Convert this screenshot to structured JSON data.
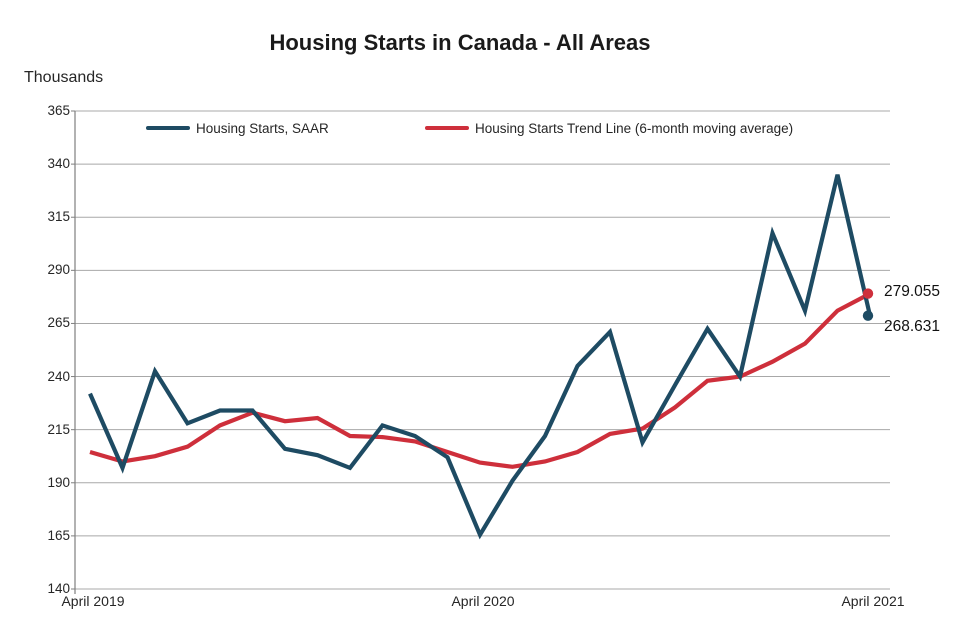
{
  "title": "Housing Starts in Canada - All Areas",
  "y_axis_unit_label": "Thousands",
  "legend": [
    {
      "label": "Housing Starts, SAAR",
      "color": "#1E4B63"
    },
    {
      "label": "Housing Starts Trend Line (6-month moving average)",
      "color": "#CE2F3B"
    }
  ],
  "end_labels": {
    "trend": "279.055",
    "saar": "268.631"
  },
  "chart_data": {
    "type": "line",
    "x_months": [
      "Apr 2019",
      "May 2019",
      "Jun 2019",
      "Jul 2019",
      "Aug 2019",
      "Sep 2019",
      "Oct 2019",
      "Nov 2019",
      "Dec 2019",
      "Jan 2020",
      "Feb 2020",
      "Mar 2020",
      "Apr 2020",
      "May 2020",
      "Jun 2020",
      "Jul 2020",
      "Aug 2020",
      "Sep 2020",
      "Oct 2020",
      "Nov 2020",
      "Dec 2020",
      "Jan 2021",
      "Feb 2021",
      "Mar 2021",
      "Apr 2021"
    ],
    "x_tick_labels": [
      "April 2019",
      "April 2020",
      "April 2021"
    ],
    "x_tick_indices": [
      0,
      12,
      24
    ],
    "y_ticks": [
      140,
      165,
      190,
      215,
      240,
      265,
      290,
      315,
      340,
      365
    ],
    "ylim": [
      140,
      365
    ],
    "grid": "horizontal",
    "legend_position": "top-inside",
    "series": [
      {
        "name": "Housing Starts Trend Line (6-month moving average)",
        "color": "#CE2F3B",
        "end_marker": true,
        "values": [
          204.5,
          200,
          202.5,
          207,
          217,
          223,
          219,
          220.5,
          212,
          211.5,
          209.5,
          204.5,
          199.5,
          197.5,
          200,
          204.5,
          213,
          215.5,
          225.5,
          238,
          240,
          247,
          255.5,
          271,
          279.055
        ]
      },
      {
        "name": "Housing Starts, SAAR",
        "color": "#1E4B63",
        "end_marker": true,
        "values": [
          232,
          197,
          242.5,
          218,
          224,
          224,
          206,
          203,
          197,
          217,
          212,
          202,
          165.5,
          191,
          212,
          245,
          261,
          209,
          236,
          262.5,
          240,
          307.5,
          271,
          335,
          268.631
        ]
      }
    ],
    "colors": {
      "gridline": "#A8A8A8",
      "axis": "#7F7F7F",
      "text": "#262626"
    }
  }
}
